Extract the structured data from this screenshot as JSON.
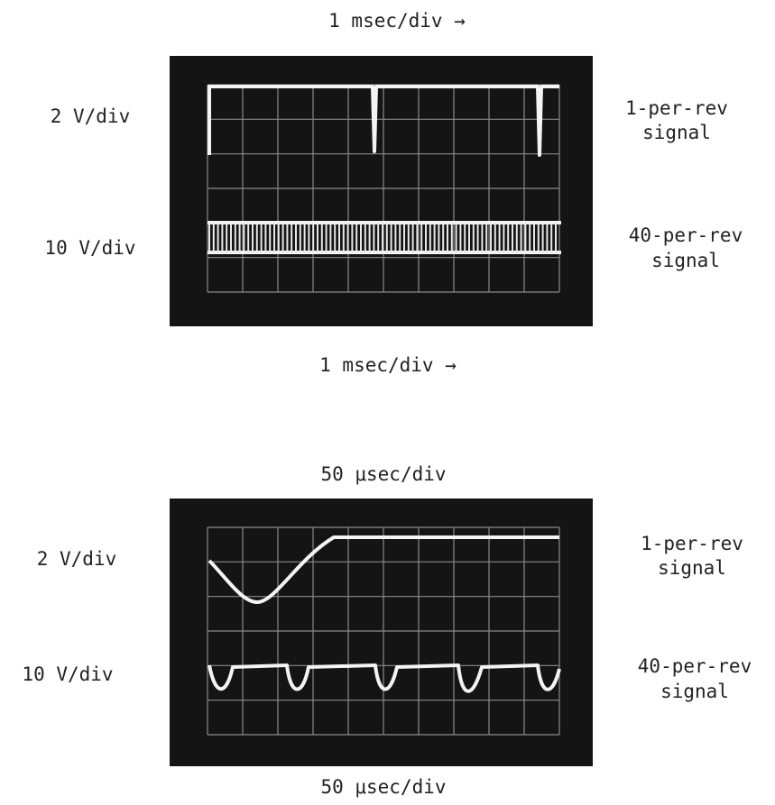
{
  "panels": [
    {
      "top_label": "1 msec/div →",
      "upper_scale": "2 V/div",
      "lower_scale": "10 V/div",
      "upper_signal": [
        "1-per-rev",
        "signal"
      ],
      "lower_signal": [
        "40-per-rev",
        "signal"
      ],
      "bottom_label": "1 msec/div →"
    },
    {
      "top_label": "50 μsec/div",
      "upper_scale": "2 V/div",
      "lower_scale": "10 V/div",
      "upper_signal": [
        "1-per-rev",
        "signal"
      ],
      "lower_signal": [
        "40-per-rev",
        "signal"
      ],
      "bottom_label": "50 μsec/div"
    }
  ]
}
